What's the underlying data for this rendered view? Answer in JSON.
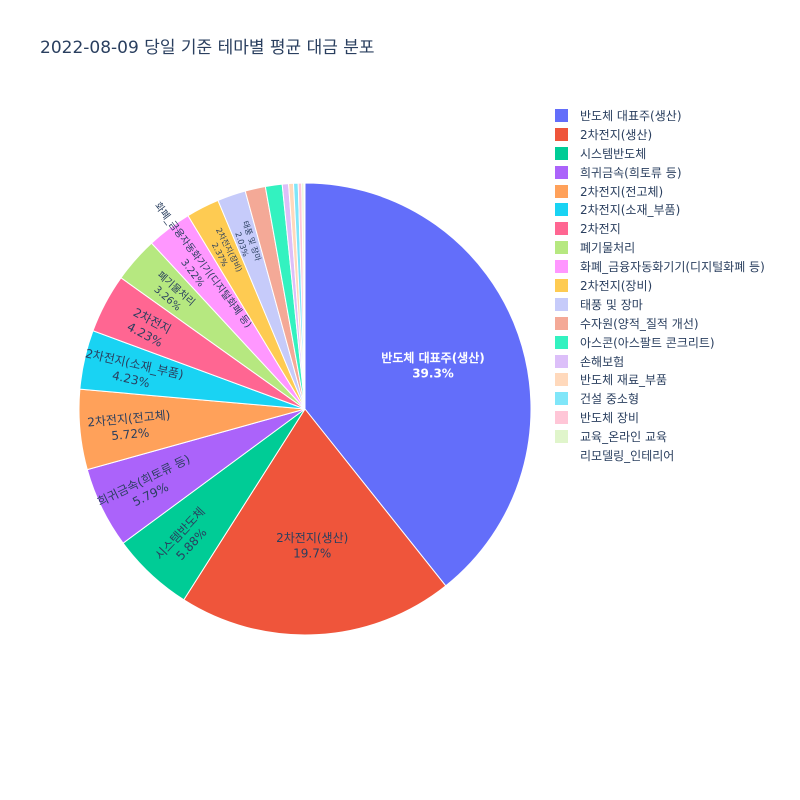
{
  "chart_data": {
    "type": "pie",
    "title": "2022-08-09 당일 기준 테마별 평균 대금 분포",
    "legend_position": "right",
    "slices": [
      {
        "label": "반도체 대표주(생산)",
        "value": 39.3,
        "pct_label": "39.3%",
        "color": "#636efa"
      },
      {
        "label": "2차전지(생산)",
        "value": 19.7,
        "pct_label": "19.7%",
        "color": "#EF553B"
      },
      {
        "label": "시스템반도체",
        "value": 5.88,
        "pct_label": "5.88%",
        "color": "#00cc96"
      },
      {
        "label": "희귀금속(희토류 등)",
        "value": 5.79,
        "pct_label": "5.79%",
        "color": "#ab63fa"
      },
      {
        "label": "2차전지(전고체)",
        "value": 5.72,
        "pct_label": "5.72%",
        "color": "#FFA15A"
      },
      {
        "label": "2차전지(소재_부품)",
        "value": 4.23,
        "pct_label": "4.23%",
        "color": "#19d3f3"
      },
      {
        "label": "2차전지",
        "value": 4.23,
        "pct_label": "4.23%",
        "color": "#FF6692"
      },
      {
        "label": "폐기물처리",
        "value": 3.26,
        "pct_label": "3.26%",
        "color": "#B6E880"
      },
      {
        "label": "화폐_금융자동화기기(디지털화폐 등)",
        "value": 3.22,
        "pct_label": "3.22%",
        "color": "#FF97FF"
      },
      {
        "label": "2차전지(장비)",
        "value": 2.37,
        "pct_label": "2.37%",
        "color": "#FECB52"
      },
      {
        "label": "태풍 및 장마",
        "value": 2.03,
        "pct_label": "2.03%",
        "color": "#c6cbfa"
      },
      {
        "label": "수자원(양적_질적 개선)",
        "value": 1.45,
        "pct_label": "",
        "color": "#f4a997"
      },
      {
        "label": "아스콘(아스팔트 콘크리트)",
        "value": 1.2,
        "pct_label": "",
        "color": "#33f2c0"
      },
      {
        "label": "손해보험",
        "value": 0.45,
        "pct_label": "",
        "color": "#dcbff9"
      },
      {
        "label": "반도체 재료_부품",
        "value": 0.35,
        "pct_label": "",
        "color": "#ffd9bc"
      },
      {
        "label": "건설 중소형",
        "value": 0.33,
        "pct_label": "",
        "color": "#80e6f9"
      },
      {
        "label": "반도체 장비",
        "value": 0.25,
        "pct_label": "",
        "color": "#ffc6d7"
      },
      {
        "label": "교육_온라인 교육",
        "value": 0.15,
        "pct_label": "",
        "color": "#e0f5cb"
      },
      {
        "label": "리모델링_인테리어",
        "value": 0.08,
        "pct_label": "",
        "color": "#ffffff"
      }
    ]
  }
}
